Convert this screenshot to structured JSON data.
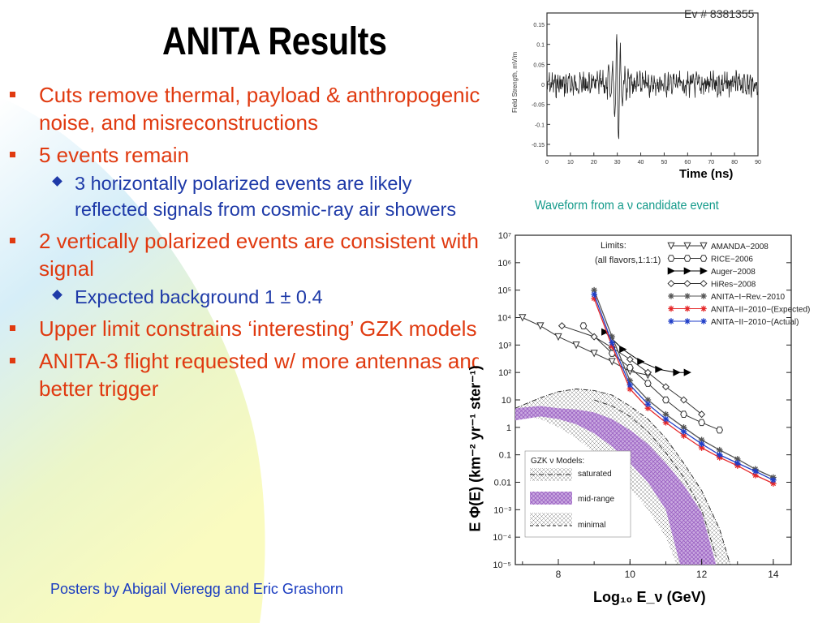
{
  "title": "ANITA Results",
  "bullets": [
    {
      "text": "Cuts remove thermal, payload & anthropogenic noise, and misreconstructions",
      "sub": []
    },
    {
      "text": "5 events remain",
      "sub": [
        "3 horizontally polarized  events are likely reflected signals from cosmic-ray air showers"
      ]
    },
    {
      "text": "2 vertically polarized events are consistent with signal",
      "sub": [
        "Expected background 1 ± 0.4"
      ]
    },
    {
      "text": "Upper limit constrains ‘interesting’ GZK models",
      "sub": []
    },
    {
      "text": "ANITA-3 flight requested w/ more antennas and better trigger",
      "sub": []
    }
  ],
  "footer": "Posters by Abigail Vieregg and Eric Grashorn",
  "waveform": {
    "event_label": "Ev # 8381355",
    "ylabel": "Field Strength, mV/m",
    "yticks": [
      "0.15",
      "0.1",
      "0.05",
      "0",
      "-0.05",
      "-0.1",
      "-0.15"
    ],
    "xticks": [
      "0",
      "10",
      "20",
      "30",
      "40",
      "50",
      "60",
      "70",
      "80",
      "90"
    ],
    "xlabel": "Time (ns)",
    "caption": "Waveform from a ν candidate event"
  },
  "limits": {
    "legend_title": [
      "Limits:",
      "(all flavors,1:1:1)"
    ],
    "ytick_labels": [
      "10⁷",
      "10⁶",
      "10⁵",
      "10⁴",
      "10³",
      "10²",
      "10",
      "1",
      "0.1",
      "0.01",
      "10⁻³",
      "10⁻⁴",
      "10⁻⁵"
    ],
    "xtick_labels": [
      "8",
      "10",
      "12",
      "14"
    ],
    "xlabel": "Log₁₀ E_ν (GeV)",
    "ylabel": "E Φ(E) (km⁻² yr⁻¹ ster⁻¹)",
    "gzk_title": "GZK ν Models:",
    "gzk_models": [
      "saturated",
      "mid-range",
      "minimal"
    ]
  },
  "chart_data": {
    "type": "line",
    "xlabel": "Log₁₀ E_ν (GeV)",
    "ylabel": "E Φ(E) (km⁻² yr⁻¹ ster⁻¹)",
    "xlim": [
      6.8,
      14.5
    ],
    "ylim_log10": [
      -5,
      7
    ],
    "log_y": true,
    "series": [
      {
        "name": "AMANDA−2008",
        "color": "#333333",
        "x": [
          7,
          7.5,
          8,
          8.5,
          9,
          9.5,
          10,
          10.5
        ],
        "y": [
          10000,
          5000,
          2000,
          1000,
          500,
          250,
          110,
          80
        ]
      },
      {
        "name": "RICE−2006",
        "color": "#333333",
        "x": [
          8.7,
          9.5,
          10,
          10.5,
          11,
          11.5,
          12,
          12.5
        ],
        "y": [
          5000,
          500,
          150,
          40,
          10,
          3,
          1.5,
          0.8
        ]
      },
      {
        "name": "Auger−2008",
        "color": "#000000",
        "x": [
          9.3,
          9.8,
          10.3,
          10.8,
          11.3,
          11.6
        ],
        "y": [
          3000,
          700,
          250,
          130,
          100,
          100
        ]
      },
      {
        "name": "HiRes−2008",
        "color": "#333333",
        "x": [
          8.1,
          9,
          9.5,
          10,
          10.5,
          11,
          11.5,
          12
        ],
        "y": [
          5000,
          2000,
          800,
          300,
          100,
          30,
          10,
          3
        ]
      },
      {
        "name": "ANITA−I−Rev.−2010",
        "color": "#555555",
        "x": [
          9,
          9.5,
          10,
          10.5,
          11,
          11.5,
          12,
          12.5,
          13,
          13.5,
          14
        ],
        "y": [
          100000,
          2000,
          50,
          10,
          3,
          1,
          0.35,
          0.15,
          0.07,
          0.03,
          0.015
        ]
      },
      {
        "name": "ANITA−II−2010−(Expected)",
        "color": "#e5282a",
        "x": [
          9,
          9.5,
          10,
          10.5,
          11,
          11.5,
          12,
          12.5,
          13,
          13.5,
          14
        ],
        "y": [
          50000,
          900,
          25,
          5,
          1.5,
          0.5,
          0.18,
          0.08,
          0.04,
          0.018,
          0.009
        ]
      },
      {
        "name": "ANITA−II−2010−(Actual)",
        "color": "#1f3ec8",
        "x": [
          9,
          9.5,
          10,
          10.5,
          11,
          11.5,
          12,
          12.5,
          13,
          13.5,
          14
        ],
        "y": [
          70000,
          1200,
          35,
          7,
          2,
          0.7,
          0.25,
          0.1,
          0.05,
          0.025,
          0.012
        ]
      }
    ]
  }
}
